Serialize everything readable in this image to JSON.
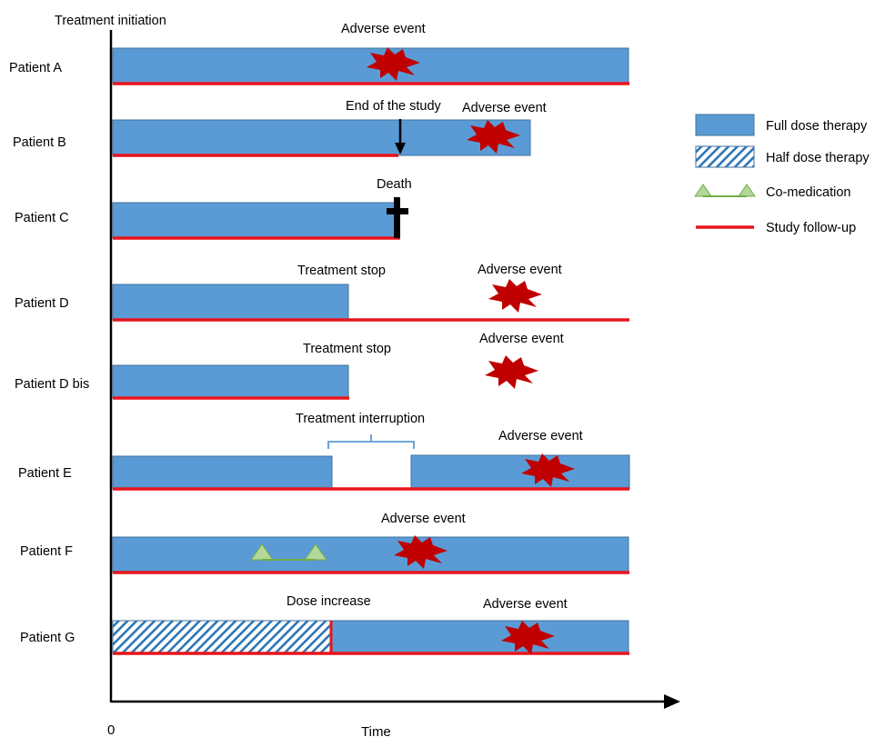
{
  "axis": {
    "top_label": "Treatment initiation",
    "origin_label": "0",
    "x_label": "Time"
  },
  "legend": {
    "items": [
      {
        "label": "Full dose therapy",
        "icon": "full-dose-swatch-icon"
      },
      {
        "label": "Half dose therapy",
        "icon": "half-dose-swatch-icon"
      },
      {
        "label": "Co-medication",
        "icon": "co-medication-triangles-icon"
      },
      {
        "label": "Study follow-up",
        "icon": "study-follow-up-line-icon"
      }
    ]
  },
  "patients": [
    {
      "name": "Patient A",
      "annotations": [
        "Adverse event"
      ]
    },
    {
      "name": "Patient B",
      "annotations": [
        "End of the study",
        "Adverse event"
      ]
    },
    {
      "name": "Patient C",
      "annotations": [
        "Death"
      ]
    },
    {
      "name": "Patient D",
      "annotations": [
        "Treatment stop",
        "Adverse event"
      ]
    },
    {
      "name": "Patient D bis",
      "annotations": [
        "Treatment stop",
        "Adverse event"
      ]
    },
    {
      "name": "Patient E",
      "annotations": [
        "Treatment interruption",
        "Adverse event"
      ]
    },
    {
      "name": "Patient F",
      "annotations": [
        "Adverse event"
      ]
    },
    {
      "name": "Patient G",
      "annotations": [
        "Dose increase",
        "Adverse event"
      ]
    }
  ],
  "colors": {
    "full_dose": "#5b9bd5",
    "bar_border": "#41719c",
    "half_dose_stripe": "#2e75b6",
    "follow_up": "#e8141c",
    "adverse_event": "#c00000",
    "co_medication_fill": "#b4d79a",
    "co_medication_stroke": "#70ad47",
    "bracket": "#5b9bd5"
  }
}
